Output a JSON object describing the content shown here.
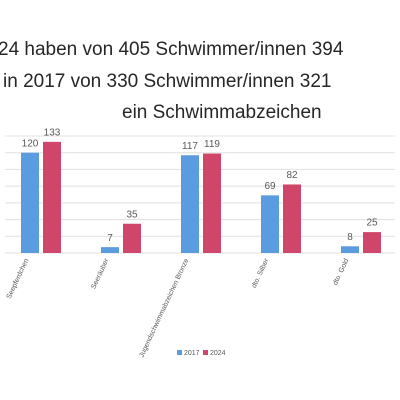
{
  "chart_data": {
    "type": "bar",
    "title_lines": [
      "24 haben von 405 Schwimmer/innen 394",
      "in 2017 von 330 Schwimmer/innen 321",
      "ein Schwimmabzeichen"
    ],
    "categories": [
      "Seepferdchen",
      "Seeräuber",
      "Jugendschwimmabzeichen Bronze",
      "dto. Silber",
      "dto. Gold"
    ],
    "series": [
      {
        "name": "2017",
        "color": "#5b9be0",
        "values": [
          120,
          7,
          117,
          69,
          8
        ]
      },
      {
        "name": "2024",
        "color": "#d0466a",
        "values": [
          133,
          35,
          119,
          82,
          25
        ]
      }
    ],
    "ylim": [
      0,
      140
    ],
    "yticks": [
      0,
      20,
      40,
      60,
      80,
      100,
      120,
      140
    ],
    "grid": true,
    "legend": "bottom"
  }
}
